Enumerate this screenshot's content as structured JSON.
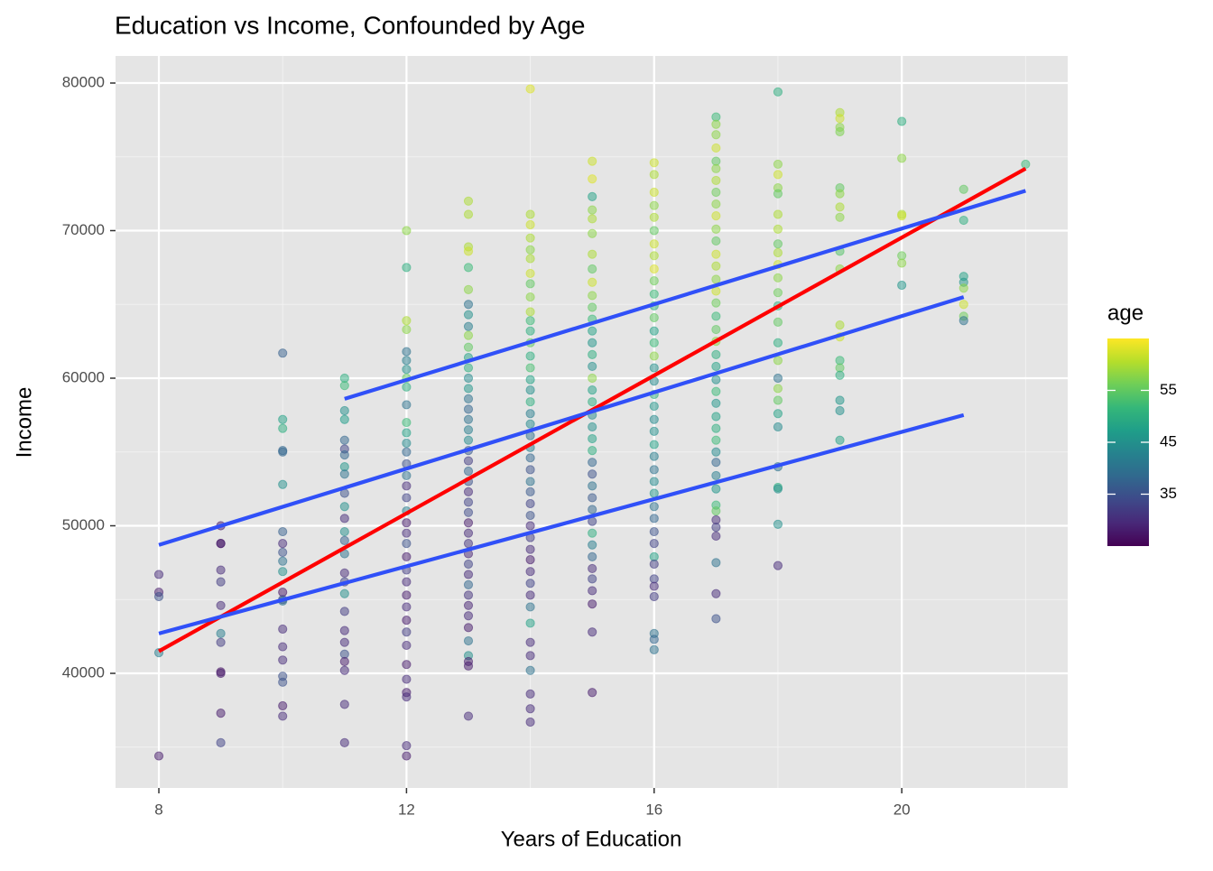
{
  "chart_data": {
    "type": "scatter",
    "title": "Education vs Income, Confounded by Age",
    "x_label": "Years of Education",
    "y_label": "Income",
    "xlim": [
      7.3,
      22.68
    ],
    "ylim": [
      32233,
      81835
    ],
    "xticks": [
      8,
      12,
      16,
      20
    ],
    "yticks": [
      40000,
      50000,
      60000,
      70000,
      80000
    ],
    "x_minor_ticks": [
      10,
      14,
      18,
      22
    ],
    "y_minor_ticks": [
      35000,
      45000,
      55000,
      65000,
      75000
    ],
    "grid": true,
    "background": "#e5e5e5",
    "colorbar": {
      "title": "age",
      "lim": [
        25,
        65
      ],
      "ticks": [
        35,
        45,
        55
      ],
      "colors": [
        "#440154",
        "#482878",
        "#3e4989",
        "#31688e",
        "#26828e",
        "#1f9e89",
        "#35b779",
        "#6ece58",
        "#b5de2b",
        "#fde725"
      ]
    },
    "groups": [
      {
        "x": 8,
        "values": [
          46700,
          45500,
          45200,
          41400,
          34400
        ],
        "age": [
          30,
          28,
          35,
          42,
          28
        ]
      },
      {
        "x": 9,
        "values": [
          50000,
          48800,
          48800,
          47000,
          46200,
          44600,
          42700,
          42100,
          40100,
          40000,
          37300,
          35300
        ],
        "age": [
          28,
          27,
          28,
          30,
          32,
          30,
          42,
          32,
          27,
          28,
          28,
          33
        ]
      },
      {
        "x": 10,
        "values": [
          61700,
          57200,
          56600,
          55100,
          55000,
          52800,
          49600,
          48800,
          48200,
          47600,
          46900,
          45500,
          45000,
          44900,
          43000,
          41800,
          40900,
          39800,
          39400,
          37800,
          37100
        ],
        "age": [
          37,
          48,
          50,
          38,
          38,
          45,
          37,
          30,
          35,
          40,
          45,
          27,
          33,
          40,
          30,
          30,
          30,
          35,
          35,
          28,
          30
        ]
      },
      {
        "x": 11,
        "values": [
          60000,
          59500,
          57800,
          57200,
          55800,
          55200,
          54800,
          54000,
          53500,
          52200,
          51300,
          50500,
          49600,
          49000,
          48100,
          46800,
          46200,
          45400,
          44200,
          42900,
          42100,
          41300,
          40800,
          40200,
          37900,
          35300
        ],
        "age": [
          50,
          52,
          45,
          47,
          38,
          33,
          38,
          46,
          40,
          35,
          45,
          30,
          45,
          37,
          40,
          30,
          33,
          45,
          32,
          30,
          30,
          35,
          28,
          30,
          30,
          30
        ]
      },
      {
        "x": 12,
        "values": [
          70000,
          67500,
          63900,
          63300,
          61800,
          61200,
          60600,
          60000,
          59400,
          58200,
          57000,
          56300,
          55600,
          55000,
          54200,
          53400,
          52700,
          51900,
          51000,
          50200,
          49500,
          48800,
          47900,
          47000,
          46200,
          45300,
          44500,
          43600,
          42800,
          41900,
          40600,
          39600,
          38700,
          38400,
          35100,
          34400
        ],
        "age": [
          58,
          50,
          60,
          58,
          40,
          42,
          45,
          55,
          50,
          40,
          52,
          48,
          44,
          38,
          35,
          40,
          30,
          33,
          42,
          28,
          30,
          35,
          28,
          32,
          30,
          28,
          30,
          28,
          32,
          30,
          28,
          30,
          28,
          30,
          30,
          28
        ]
      },
      {
        "x": 13,
        "values": [
          72000,
          71100,
          68900,
          68600,
          67500,
          66000,
          65000,
          64300,
          63500,
          62900,
          62100,
          61400,
          60700,
          60000,
          59300,
          58600,
          57900,
          57200,
          56500,
          55800,
          55100,
          54400,
          53700,
          53000,
          52300,
          51600,
          50900,
          50200,
          49500,
          48800,
          48100,
          47400,
          46700,
          46000,
          45300,
          44600,
          43900,
          43100,
          42200,
          41200,
          40800,
          40500,
          37100
        ],
        "age": [
          60,
          60,
          60,
          62,
          52,
          58,
          40,
          45,
          42,
          58,
          55,
          48,
          50,
          44,
          46,
          40,
          38,
          40,
          42,
          44,
          36,
          32,
          38,
          35,
          30,
          33,
          34,
          28,
          30,
          31,
          29,
          33,
          30,
          38,
          31,
          29,
          30,
          28,
          40,
          45,
          28,
          28,
          30
        ]
      },
      {
        "x": 14,
        "values": [
          79600,
          71100,
          70400,
          69500,
          68700,
          68100,
          67100,
          66400,
          65500,
          64500,
          63900,
          63200,
          62400,
          61500,
          60700,
          59900,
          59200,
          58400,
          57600,
          56900,
          56100,
          55300,
          54600,
          53800,
          53000,
          52300,
          51500,
          50700,
          50000,
          49200,
          48400,
          47700,
          46900,
          46100,
          45300,
          44500,
          43400,
          42100,
          41200,
          40200,
          38600,
          37600,
          36700
        ],
        "age": [
          63,
          60,
          62,
          60,
          58,
          60,
          62,
          55,
          58,
          60,
          52,
          50,
          55,
          50,
          53,
          48,
          45,
          50,
          42,
          44,
          40,
          42,
          38,
          35,
          40,
          36,
          33,
          35,
          30,
          32,
          30,
          28,
          30,
          33,
          30,
          40,
          48,
          30,
          30,
          40,
          30,
          30,
          30
        ]
      },
      {
        "x": 15,
        "values": [
          74700,
          73500,
          72300,
          71400,
          70800,
          69800,
          68400,
          67400,
          66500,
          65600,
          64800,
          64000,
          63200,
          62400,
          61600,
          60800,
          60000,
          59200,
          58400,
          57500,
          56700,
          55900,
          55100,
          54300,
          53500,
          52700,
          51900,
          51100,
          50300,
          49500,
          48700,
          47900,
          47100,
          46400,
          45600,
          44700,
          42800,
          38700
        ],
        "age": [
          62,
          63,
          48,
          58,
          60,
          58,
          60,
          55,
          62,
          58,
          55,
          52,
          48,
          46,
          50,
          45,
          58,
          48,
          50,
          44,
          45,
          48,
          50,
          38,
          35,
          40,
          36,
          38,
          33,
          50,
          42,
          38,
          30,
          33,
          30,
          28,
          30,
          28
        ]
      },
      {
        "x": 16,
        "values": [
          74600,
          73800,
          72600,
          71700,
          70900,
          70000,
          69100,
          68300,
          67400,
          66600,
          65700,
          64900,
          64100,
          63200,
          62400,
          61500,
          60700,
          59800,
          58900,
          58100,
          57200,
          56400,
          55500,
          54700,
          53800,
          53000,
          52200,
          51300,
          50500,
          49600,
          48800,
          47900,
          47400,
          46400,
          45900,
          45200,
          42700,
          42300,
          41600
        ],
        "age": [
          62,
          60,
          62,
          58,
          60,
          55,
          62,
          60,
          63,
          56,
          52,
          50,
          55,
          48,
          52,
          58,
          45,
          44,
          50,
          46,
          44,
          45,
          48,
          42,
          40,
          44,
          46,
          40,
          38,
          35,
          33,
          48,
          32,
          33,
          30,
          32,
          40,
          38,
          40
        ]
      },
      {
        "x": 17,
        "values": [
          77700,
          77200,
          76500,
          75600,
          74700,
          74200,
          73400,
          72600,
          71800,
          71000,
          70100,
          69300,
          68400,
          67600,
          66700,
          65900,
          65100,
          64200,
          63300,
          62500,
          61600,
          60800,
          59900,
          59100,
          58300,
          57400,
          56600,
          55800,
          55000,
          54300,
          53400,
          52500,
          51400,
          51000,
          50400,
          49900,
          49300,
          47500,
          45400,
          43700
        ],
        "age": [
          52,
          58,
          58,
          62,
          55,
          58,
          60,
          56,
          58,
          62,
          58,
          55,
          62,
          60,
          58,
          62,
          56,
          52,
          55,
          58,
          50,
          48,
          45,
          52,
          46,
          48,
          50,
          52,
          44,
          38,
          42,
          46,
          52,
          55,
          30,
          32,
          30,
          40,
          30,
          35
        ]
      },
      {
        "x": 18,
        "values": [
          79400,
          74500,
          73800,
          72900,
          72500,
          71100,
          70100,
          69100,
          68500,
          67700,
          66800,
          65800,
          64900,
          63800,
          62400,
          61200,
          60000,
          59300,
          58500,
          57600,
          56700,
          54000,
          52600,
          52500,
          50100,
          47300
        ],
        "age": [
          50,
          58,
          62,
          58,
          55,
          60,
          60,
          55,
          60,
          62,
          58,
          56,
          50,
          55,
          50,
          58,
          40,
          58,
          55,
          48,
          44,
          40,
          50,
          45,
          45,
          30
        ]
      },
      {
        "x": 19,
        "values": [
          78000,
          77600,
          77000,
          76700,
          72900,
          72500,
          71600,
          70900,
          68600,
          67400,
          63600,
          62800,
          61200,
          60700,
          60200,
          58500,
          57800,
          55800
        ],
        "age": [
          60,
          62,
          58,
          57,
          55,
          58,
          60,
          58,
          54,
          58,
          60,
          62,
          52,
          55,
          50,
          46,
          45,
          48
        ]
      },
      {
        "x": 20,
        "values": [
          77400,
          74900,
          71100,
          71000,
          68300,
          67800,
          66300
        ],
        "age": [
          50,
          58,
          60,
          62,
          56,
          58,
          46
        ]
      },
      {
        "x": 21,
        "values": [
          72800,
          70700,
          66900,
          66500,
          66100,
          65000,
          64200,
          63900
        ],
        "age": [
          55,
          50,
          48,
          46,
          58,
          62,
          56,
          40
        ]
      },
      {
        "x": 22,
        "values": [
          74500
        ],
        "age": [
          52
        ]
      }
    ],
    "fits": [
      {
        "color": "#ff0000",
        "x": [
          8,
          22
        ],
        "values": [
          41500,
          74200
        ]
      },
      {
        "color": "#3050f8",
        "x": [
          11,
          22
        ],
        "values": [
          58600,
          72700
        ]
      },
      {
        "color": "#3050f8",
        "x": [
          8,
          21
        ],
        "values": [
          48700,
          65500
        ]
      },
      {
        "color": "#3050f8",
        "x": [
          8,
          21
        ],
        "values": [
          42700,
          57500
        ]
      }
    ]
  }
}
